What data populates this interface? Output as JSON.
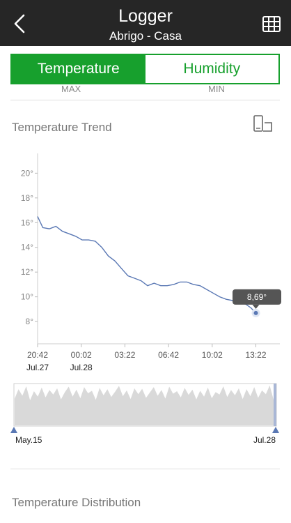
{
  "header": {
    "title": "Logger",
    "subtitle": "Abrigo - Casa"
  },
  "tabs": [
    {
      "label": "Temperature",
      "active": true
    },
    {
      "label": "Humidity",
      "active": false
    }
  ],
  "stats_partial": {
    "max_label": "MAX",
    "min_label": "MIN"
  },
  "trend_section": {
    "title": "Temperature Trend"
  },
  "distribution_section": {
    "title": "Temperature Distribution"
  },
  "colors": {
    "accent": "#17a02d",
    "header_bg": "#262626",
    "line": "#5a78b4",
    "overview_fill": "#d9d9d9"
  },
  "icons": {
    "back": "chevron-left-icon",
    "grid": "table-grid-icon",
    "device": "phone-rotate-icon"
  },
  "chart_data": [
    {
      "type": "line",
      "title": "",
      "xlabel": "",
      "ylabel": "",
      "y_ticks": [
        "20°",
        "18°",
        "16°",
        "14°",
        "12°",
        "10°",
        "8°"
      ],
      "y_tick_values": [
        20,
        18,
        16,
        14,
        12,
        10,
        8
      ],
      "ylim": [
        6.2,
        21.6
      ],
      "x_ticks": [
        "20:42",
        "00:02",
        "03:22",
        "06:42",
        "10:02",
        "13:22"
      ],
      "x_tick_hours": [
        20.7,
        24.033,
        27.367,
        30.7,
        34.033,
        37.367
      ],
      "x_date_labels": [
        {
          "label": "Jul.27",
          "at_hour": 20.7
        },
        {
          "label": "Jul.28",
          "at_hour": 24.033
        }
      ],
      "xlim_hours": [
        20.7,
        39.2
      ],
      "grid": false,
      "tooltip": {
        "label": "8,69°",
        "x_hour": 37.367,
        "y": 8.69
      },
      "series": [
        {
          "x_hours": [
            20.7,
            21.1,
            21.6,
            22.1,
            22.6,
            23.1,
            23.6,
            24.1,
            24.6,
            25.1,
            25.6,
            26.1,
            26.6,
            27.1,
            27.6,
            28.1,
            28.6,
            29.1,
            29.6,
            30.1,
            30.6,
            31.1,
            31.6,
            32.1,
            32.6,
            33.1,
            33.6,
            34.1,
            34.6,
            35.1,
            35.6,
            36.1,
            36.6,
            37.0,
            37.367
          ],
          "values": [
            16.5,
            15.6,
            15.5,
            15.7,
            15.3,
            15.1,
            14.9,
            14.6,
            14.6,
            14.5,
            14.0,
            13.3,
            12.9,
            12.3,
            11.7,
            11.5,
            11.3,
            10.9,
            11.1,
            10.9,
            10.9,
            11.0,
            11.2,
            11.2,
            11.0,
            10.9,
            10.6,
            10.3,
            10.0,
            9.8,
            9.7,
            9.6,
            9.4,
            9.1,
            8.69
          ]
        }
      ]
    },
    {
      "type": "area",
      "title": "",
      "x_labels": [
        "May.15",
        "Jul.28"
      ],
      "ylim": [
        0,
        10
      ],
      "grid": false,
      "series": [
        {
          "values": [
            6.5,
            8.8,
            7.2,
            9.5,
            6.1,
            8.3,
            7.0,
            9.2,
            6.8,
            8.6,
            7.5,
            9.0,
            6.3,
            8.1,
            9.4,
            7.0,
            8.7,
            6.6,
            9.3,
            7.8,
            8.4,
            6.2,
            9.1,
            7.3,
            8.8,
            6.9,
            8.2,
            9.6,
            7.1,
            8.5,
            6.4,
            9.0,
            7.6,
            8.9,
            6.7,
            8.0,
            9.3,
            7.2,
            8.6,
            6.5,
            9.4,
            7.7,
            8.3,
            6.8,
            9.1,
            7.4,
            8.7,
            6.3,
            8.4,
            7.0,
            9.2,
            6.6,
            8.1,
            7.5,
            9.5,
            6.9,
            8.6,
            7.3,
            9.0,
            6.4,
            8.8,
            7.1,
            9.3,
            6.7,
            8.5,
            7.6,
            9.7,
            6.2
          ]
        }
      ]
    }
  ]
}
